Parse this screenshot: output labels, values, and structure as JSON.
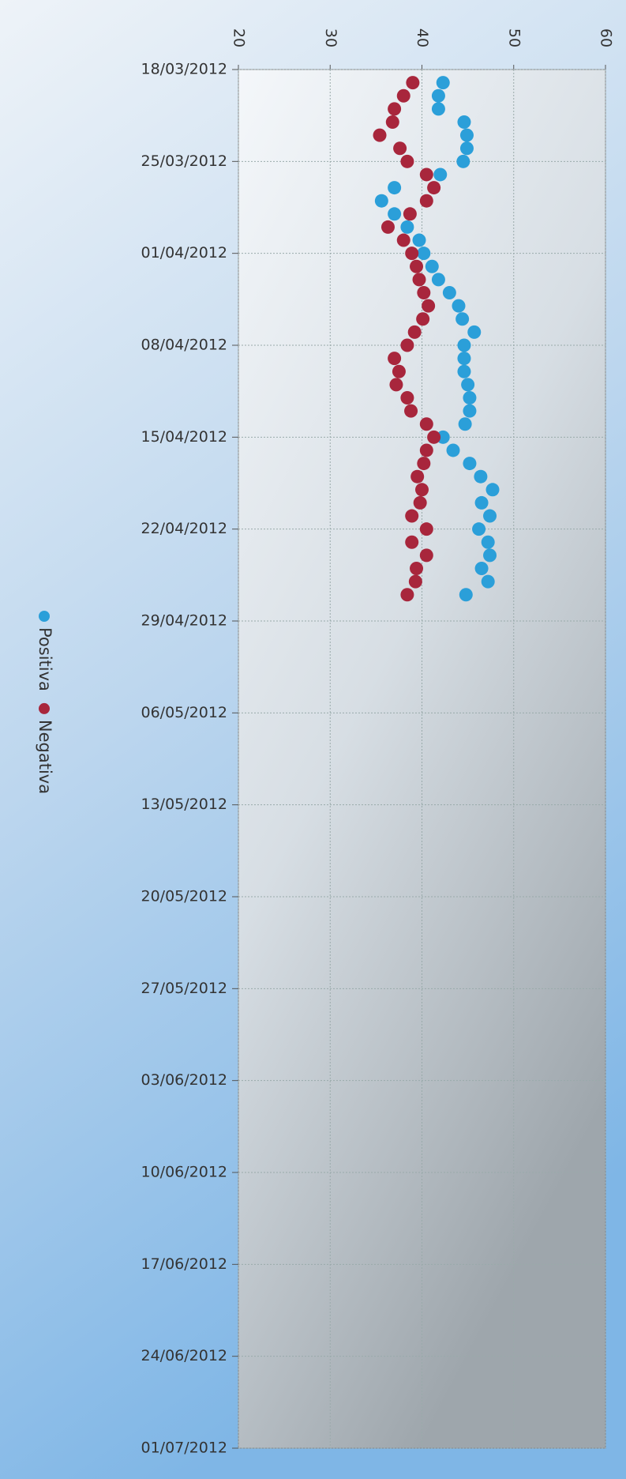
{
  "chart_data": {
    "type": "scatter",
    "x": [
      "2012-03-19",
      "2012-03-20",
      "2012-03-21",
      "2012-03-22",
      "2012-03-23",
      "2012-03-24",
      "2012-03-25",
      "2012-03-26",
      "2012-03-27",
      "2012-03-28",
      "2012-03-29",
      "2012-03-30",
      "2012-03-31",
      "2012-04-01",
      "2012-04-02",
      "2012-04-03",
      "2012-04-04",
      "2012-04-05",
      "2012-04-06",
      "2012-04-07",
      "2012-04-08",
      "2012-04-09",
      "2012-04-10",
      "2012-04-11",
      "2012-04-12",
      "2012-04-13",
      "2012-04-14",
      "2012-04-15",
      "2012-04-16",
      "2012-04-17",
      "2012-04-18",
      "2012-04-19",
      "2012-04-20",
      "2012-04-21",
      "2012-04-22",
      "2012-04-23",
      "2012-04-24",
      "2012-04-25",
      "2012-04-26",
      "2012-04-27"
    ],
    "series": [
      {
        "name": "Positiva",
        "color": "#2b9fd9",
        "values": [
          42.3,
          41.8,
          41.8,
          44.6,
          44.9,
          44.9,
          44.5,
          42.0,
          37.0,
          35.6,
          37.0,
          38.4,
          39.7,
          40.2,
          41.1,
          41.8,
          43.0,
          44.0,
          44.4,
          45.7,
          44.6,
          44.6,
          44.6,
          45.0,
          45.2,
          45.2,
          44.7,
          42.3,
          43.4,
          45.2,
          46.4,
          47.7,
          46.5,
          47.4,
          46.2,
          47.2,
          47.4,
          46.5,
          47.2,
          44.8
        ]
      },
      {
        "name": "Negativa",
        "color": "#a8263c",
        "values": [
          39.0,
          38.0,
          37.0,
          36.8,
          35.4,
          37.6,
          38.4,
          40.5,
          41.3,
          40.5,
          38.7,
          36.3,
          38.0,
          38.9,
          39.4,
          39.7,
          40.2,
          40.7,
          40.1,
          39.2,
          38.4,
          37.0,
          37.5,
          37.2,
          38.4,
          38.8,
          40.5,
          41.3,
          40.5,
          40.2,
          39.5,
          40.0,
          39.8,
          38.9,
          40.5,
          38.9,
          40.5,
          39.4,
          39.3,
          38.4
        ]
      }
    ],
    "xlim": [
      "2012-03-18",
      "2012-07-01"
    ],
    "xticks": [
      {
        "value": "2012-03-18",
        "label": "18/03/2012"
      },
      {
        "value": "2012-03-25",
        "label": "25/03/2012"
      },
      {
        "value": "2012-04-01",
        "label": "01/04/2012"
      },
      {
        "value": "2012-04-08",
        "label": "08/04/2012"
      },
      {
        "value": "2012-04-15",
        "label": "15/04/2012"
      },
      {
        "value": "2012-04-22",
        "label": "22/04/2012"
      },
      {
        "value": "2012-04-29",
        "label": "29/04/2012"
      },
      {
        "value": "2012-05-06",
        "label": "06/05/2012"
      },
      {
        "value": "2012-05-13",
        "label": "13/05/2012"
      },
      {
        "value": "2012-05-20",
        "label": "20/05/2012"
      },
      {
        "value": "2012-05-27",
        "label": "27/05/2012"
      },
      {
        "value": "2012-06-03",
        "label": "03/06/2012"
      },
      {
        "value": "2012-06-10",
        "label": "10/06/2012"
      },
      {
        "value": "2012-06-17",
        "label": "17/06/2012"
      },
      {
        "value": "2012-06-24",
        "label": "24/06/2012"
      },
      {
        "value": "2012-07-01",
        "label": "01/07/2012"
      }
    ],
    "ylim": [
      20,
      60
    ],
    "yticks": [
      20,
      30,
      40,
      50,
      60
    ],
    "grid": true
  }
}
